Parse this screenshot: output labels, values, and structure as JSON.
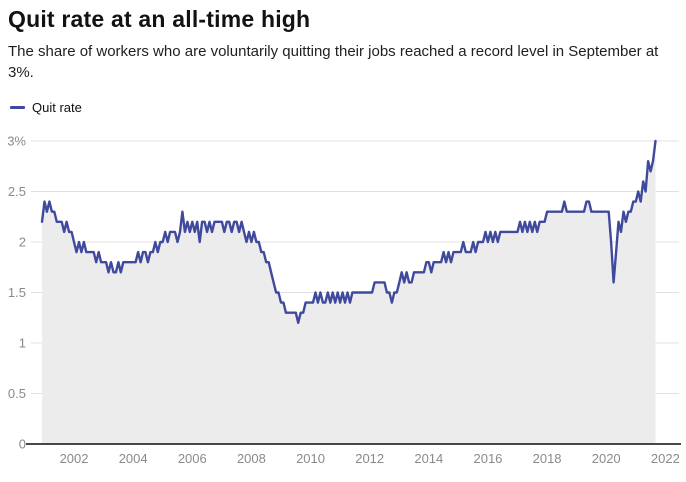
{
  "header": {
    "title": "Quit rate at an all-time high",
    "subtitle": "The share of workers who are voluntarily quitting their jobs reached a record level in September at 3%."
  },
  "legend": {
    "items": [
      {
        "label": "Quit rate",
        "color": "#404a9d"
      }
    ]
  },
  "chart_data": {
    "type": "line",
    "title": "Quit rate at an all-time high",
    "subtitle": "The share of workers who are voluntarily quitting their jobs reached a record level in September at 3%.",
    "xlabel": "",
    "ylabel": "",
    "ylim": [
      0,
      3
    ],
    "grid": "horizontal",
    "legend_position": "top-left",
    "area_fill": true,
    "x_tick_labels": [
      "2002",
      "2004",
      "2006",
      "2008",
      "2010",
      "2012",
      "2014",
      "2016",
      "2018",
      "2020",
      "2022"
    ],
    "x_tick_years": [
      2002,
      2004,
      2006,
      2008,
      2010,
      2012,
      2014,
      2016,
      2018,
      2020,
      2022
    ],
    "y_tick_labels": [
      "3%",
      "2.5",
      "2",
      "1.5",
      "1",
      "0.5",
      "0"
    ],
    "y_tick_values": [
      3,
      2.5,
      2,
      1.5,
      1,
      0.5,
      0
    ],
    "colors": {
      "line": "#404a9d",
      "area": "#ececec",
      "grid": "#e0e0e0",
      "baseline": "#2e2e2e",
      "tick_text": "#8a8a8a"
    },
    "series": [
      {
        "name": "Quit rate",
        "unit": "%",
        "start": "2000-12",
        "end": "2021-09",
        "frequency": "monthly",
        "final_value": 3.0,
        "values": [
          2.2,
          2.4,
          2.3,
          2.4,
          2.3,
          2.3,
          2.2,
          2.2,
          2.2,
          2.1,
          2.2,
          2.1,
          2.1,
          2.0,
          1.9,
          2.0,
          1.9,
          2.0,
          1.9,
          1.9,
          1.9,
          1.9,
          1.8,
          1.9,
          1.8,
          1.8,
          1.8,
          1.7,
          1.8,
          1.7,
          1.7,
          1.8,
          1.7,
          1.8,
          1.8,
          1.8,
          1.8,
          1.8,
          1.8,
          1.9,
          1.8,
          1.9,
          1.9,
          1.8,
          1.9,
          1.9,
          2.0,
          1.9,
          2.0,
          2.0,
          2.1,
          2.0,
          2.1,
          2.1,
          2.1,
          2.0,
          2.1,
          2.3,
          2.1,
          2.2,
          2.1,
          2.2,
          2.1,
          2.2,
          2.0,
          2.2,
          2.2,
          2.1,
          2.2,
          2.1,
          2.2,
          2.2,
          2.2,
          2.2,
          2.1,
          2.2,
          2.2,
          2.1,
          2.2,
          2.2,
          2.1,
          2.2,
          2.1,
          2.0,
          2.1,
          2.0,
          2.1,
          2.0,
          2.0,
          1.9,
          1.9,
          1.8,
          1.8,
          1.7,
          1.6,
          1.5,
          1.5,
          1.4,
          1.4,
          1.3,
          1.3,
          1.3,
          1.3,
          1.3,
          1.2,
          1.3,
          1.3,
          1.4,
          1.4,
          1.4,
          1.4,
          1.5,
          1.4,
          1.5,
          1.4,
          1.4,
          1.5,
          1.4,
          1.5,
          1.4,
          1.5,
          1.4,
          1.5,
          1.4,
          1.5,
          1.4,
          1.5,
          1.5,
          1.5,
          1.5,
          1.5,
          1.5,
          1.5,
          1.5,
          1.5,
          1.6,
          1.6,
          1.6,
          1.6,
          1.6,
          1.5,
          1.5,
          1.4,
          1.5,
          1.5,
          1.6,
          1.7,
          1.6,
          1.7,
          1.6,
          1.6,
          1.7,
          1.7,
          1.7,
          1.7,
          1.7,
          1.8,
          1.8,
          1.7,
          1.8,
          1.8,
          1.8,
          1.8,
          1.9,
          1.8,
          1.9,
          1.8,
          1.9,
          1.9,
          1.9,
          1.9,
          2.0,
          1.9,
          1.9,
          1.9,
          2.0,
          1.9,
          2.0,
          2.0,
          2.0,
          2.1,
          2.0,
          2.1,
          2.0,
          2.1,
          2.0,
          2.1,
          2.1,
          2.1,
          2.1,
          2.1,
          2.1,
          2.1,
          2.1,
          2.2,
          2.1,
          2.2,
          2.1,
          2.2,
          2.1,
          2.2,
          2.1,
          2.2,
          2.2,
          2.2,
          2.3,
          2.3,
          2.3,
          2.3,
          2.3,
          2.3,
          2.3,
          2.4,
          2.3,
          2.3,
          2.3,
          2.3,
          2.3,
          2.3,
          2.3,
          2.3,
          2.4,
          2.4,
          2.3,
          2.3,
          2.3,
          2.3,
          2.3,
          2.3,
          2.3,
          2.3,
          2.0,
          1.6,
          1.9,
          2.2,
          2.1,
          2.3,
          2.2,
          2.3,
          2.3,
          2.4,
          2.4,
          2.5,
          2.4,
          2.6,
          2.5,
          2.8,
          2.7,
          2.8,
          3.0
        ]
      }
    ]
  }
}
